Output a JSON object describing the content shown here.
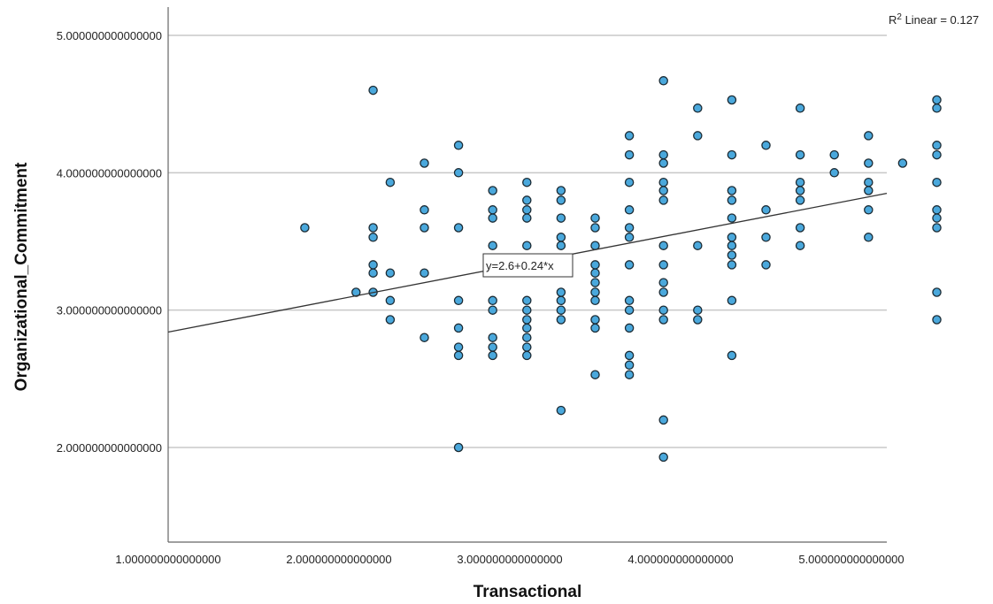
{
  "chart_data": {
    "type": "scatter",
    "xlabel": "Transactional",
    "ylabel": "Organizational_Commitment",
    "xlim": [
      1.0,
      5.3
    ],
    "ylim": [
      1.33,
      5.2
    ],
    "x_ticks": [
      1,
      2,
      3,
      4,
      5
    ],
    "x_tick_labels": [
      "1.000000000000000",
      "2.000000000000000",
      "3.000000000000000",
      "4.000000000000000",
      "5.000000000000000"
    ],
    "y_ticks": [
      2,
      3,
      4,
      5
    ],
    "y_tick_labels": [
      "2.000000000000000",
      "3.000000000000000",
      "4.000000000000000",
      "5.000000000000000"
    ],
    "grid": "horizontal",
    "annotations": {
      "r2_prefix": "R",
      "r2_sup": "2",
      "r2_suffix": " Linear = 0.127",
      "equation": "y=2.6+0.24*x"
    },
    "fit_line": {
      "intercept": 2.6,
      "slope": 0.24
    },
    "points": [
      [
        1.8,
        3.6
      ],
      [
        2.1,
        3.13
      ],
      [
        2.2,
        4.6
      ],
      [
        2.2,
        3.6
      ],
      [
        2.2,
        3.53
      ],
      [
        2.2,
        3.33
      ],
      [
        2.2,
        3.27
      ],
      [
        2.2,
        3.13
      ],
      [
        2.3,
        3.93
      ],
      [
        2.3,
        3.27
      ],
      [
        2.3,
        3.07
      ],
      [
        2.3,
        2.93
      ],
      [
        2.5,
        4.07
      ],
      [
        2.5,
        3.73
      ],
      [
        2.5,
        3.6
      ],
      [
        2.5,
        3.27
      ],
      [
        2.5,
        2.8
      ],
      [
        2.7,
        4.2
      ],
      [
        2.7,
        4.0
      ],
      [
        2.7,
        3.6
      ],
      [
        2.7,
        3.07
      ],
      [
        2.7,
        2.87
      ],
      [
        2.7,
        2.73
      ],
      [
        2.7,
        2.67
      ],
      [
        2.7,
        2.0
      ],
      [
        2.9,
        3.87
      ],
      [
        2.9,
        3.73
      ],
      [
        2.9,
        3.67
      ],
      [
        2.9,
        3.47
      ],
      [
        2.9,
        3.07
      ],
      [
        2.9,
        3.0
      ],
      [
        2.9,
        2.8
      ],
      [
        2.9,
        2.73
      ],
      [
        2.9,
        2.67
      ],
      [
        3.1,
        3.93
      ],
      [
        3.1,
        3.8
      ],
      [
        3.1,
        3.73
      ],
      [
        3.1,
        3.67
      ],
      [
        3.1,
        3.47
      ],
      [
        3.1,
        3.07
      ],
      [
        3.1,
        3.0
      ],
      [
        3.1,
        2.93
      ],
      [
        3.1,
        2.87
      ],
      [
        3.1,
        2.8
      ],
      [
        3.1,
        2.73
      ],
      [
        3.1,
        2.67
      ],
      [
        3.3,
        3.87
      ],
      [
        3.3,
        3.8
      ],
      [
        3.3,
        3.67
      ],
      [
        3.3,
        3.53
      ],
      [
        3.3,
        3.47
      ],
      [
        3.3,
        3.13
      ],
      [
        3.3,
        3.07
      ],
      [
        3.3,
        3.0
      ],
      [
        3.3,
        2.93
      ],
      [
        3.3,
        2.27
      ],
      [
        3.5,
        3.67
      ],
      [
        3.5,
        3.6
      ],
      [
        3.5,
        3.47
      ],
      [
        3.5,
        3.33
      ],
      [
        3.5,
        3.27
      ],
      [
        3.5,
        3.2
      ],
      [
        3.5,
        3.13
      ],
      [
        3.5,
        3.07
      ],
      [
        3.5,
        2.93
      ],
      [
        3.5,
        2.87
      ],
      [
        3.5,
        2.53
      ],
      [
        3.7,
        4.27
      ],
      [
        3.7,
        4.13
      ],
      [
        3.7,
        3.93
      ],
      [
        3.7,
        3.73
      ],
      [
        3.7,
        3.6
      ],
      [
        3.7,
        3.53
      ],
      [
        3.7,
        3.33
      ],
      [
        3.7,
        3.07
      ],
      [
        3.7,
        3.0
      ],
      [
        3.7,
        2.87
      ],
      [
        3.7,
        2.67
      ],
      [
        3.7,
        2.6
      ],
      [
        3.7,
        2.53
      ],
      [
        3.9,
        4.67
      ],
      [
        3.9,
        4.13
      ],
      [
        3.9,
        4.07
      ],
      [
        3.9,
        3.93
      ],
      [
        3.9,
        3.87
      ],
      [
        3.9,
        3.8
      ],
      [
        3.9,
        3.47
      ],
      [
        3.9,
        3.33
      ],
      [
        3.9,
        3.2
      ],
      [
        3.9,
        3.13
      ],
      [
        3.9,
        3.0
      ],
      [
        3.9,
        2.93
      ],
      [
        3.9,
        2.2
      ],
      [
        3.9,
        1.93
      ],
      [
        4.1,
        4.47
      ],
      [
        4.1,
        4.27
      ],
      [
        4.1,
        3.47
      ],
      [
        4.1,
        3.0
      ],
      [
        4.1,
        2.93
      ],
      [
        4.3,
        4.53
      ],
      [
        4.3,
        4.13
      ],
      [
        4.3,
        3.87
      ],
      [
        4.3,
        3.8
      ],
      [
        4.3,
        3.67
      ],
      [
        4.3,
        3.53
      ],
      [
        4.3,
        3.47
      ],
      [
        4.3,
        3.4
      ],
      [
        4.3,
        3.33
      ],
      [
        4.3,
        3.07
      ],
      [
        4.3,
        2.67
      ],
      [
        4.5,
        4.2
      ],
      [
        4.5,
        3.73
      ],
      [
        4.5,
        3.53
      ],
      [
        4.5,
        3.33
      ],
      [
        4.7,
        4.47
      ],
      [
        4.7,
        4.13
      ],
      [
        4.7,
        3.93
      ],
      [
        4.7,
        3.87
      ],
      [
        4.7,
        3.8
      ],
      [
        4.7,
        3.6
      ],
      [
        4.7,
        3.47
      ],
      [
        4.9,
        4.13
      ],
      [
        4.9,
        4.0
      ],
      [
        5.1,
        4.27
      ],
      [
        5.1,
        4.07
      ],
      [
        5.1,
        3.93
      ],
      [
        5.1,
        3.87
      ],
      [
        5.1,
        3.73
      ],
      [
        5.1,
        3.53
      ],
      [
        5.3,
        4.07
      ],
      [
        5.5,
        4.53
      ],
      [
        5.5,
        4.47
      ],
      [
        5.5,
        4.2
      ],
      [
        5.5,
        4.13
      ],
      [
        5.5,
        3.93
      ],
      [
        5.5,
        3.73
      ],
      [
        5.5,
        3.67
      ],
      [
        5.5,
        3.6
      ],
      [
        5.5,
        3.13
      ],
      [
        5.5,
        2.93
      ]
    ]
  }
}
